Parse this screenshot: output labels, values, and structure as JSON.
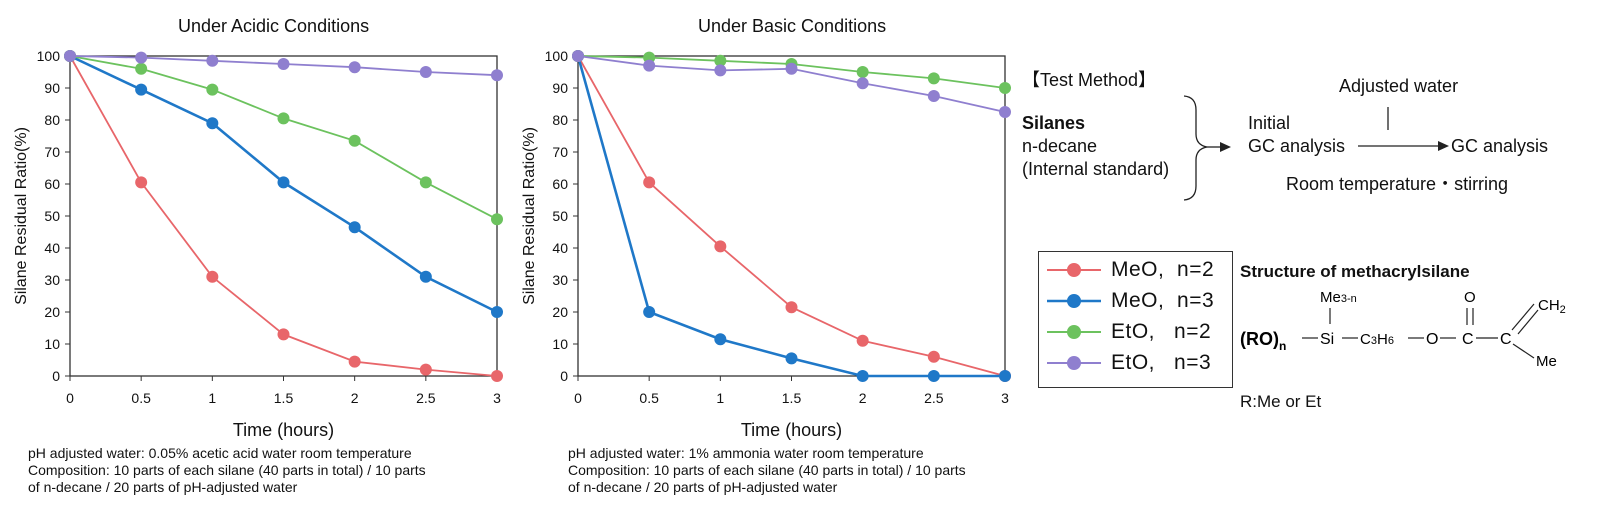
{
  "chart_data": [
    {
      "type": "line",
      "title": "Under Acidic Conditions",
      "xlabel": "Time (hours)",
      "ylabel": "Silane Residual Ratio(%)",
      "x": [
        0,
        0.5,
        1,
        1.5,
        2,
        2.5,
        3
      ],
      "x_tick_labels": [
        "0",
        "0.5",
        "1",
        "1.5",
        "2",
        "2.5",
        "3"
      ],
      "y_tick_labels": [
        "0",
        "10",
        "20",
        "30",
        "40",
        "50",
        "60",
        "70",
        "80",
        "90",
        "100"
      ],
      "xlim": [
        0,
        3
      ],
      "ylim": [
        0,
        100
      ],
      "series": [
        {
          "name": "MeO, n=2",
          "color": "#e8666a",
          "values": [
            100,
            60.5,
            31,
            13,
            4.5,
            2,
            0
          ]
        },
        {
          "name": "MeO, n=3",
          "color": "#1f78c8",
          "values": [
            100,
            89.5,
            79,
            60.5,
            46.5,
            31,
            20
          ]
        },
        {
          "name": "EtO, n=2",
          "color": "#6cc25e",
          "values": [
            100,
            96,
            89.5,
            80.5,
            73.5,
            60.5,
            49
          ]
        },
        {
          "name": "EtO, n=3",
          "color": "#8f7fcf",
          "values": [
            100,
            99.5,
            98.5,
            97.5,
            96.5,
            95,
            94
          ]
        }
      ],
      "note_lines": [
        "pH adjusted water: 0.05% acetic acid water room temperature",
        "Composition: 10 parts of each silane (40 parts in total) / 10 parts",
        "of n-decane / 20 parts of pH-adjusted water"
      ]
    },
    {
      "type": "line",
      "title": "Under Basic Conditions",
      "xlabel": "Time (hours)",
      "ylabel": "Silane Residual Ratio(%)",
      "x": [
        0,
        0.5,
        1,
        1.5,
        2,
        2.5,
        3
      ],
      "x_tick_labels": [
        "0",
        "0.5",
        "1",
        "1.5",
        "2",
        "2.5",
        "3"
      ],
      "y_tick_labels": [
        "0",
        "10",
        "20",
        "30",
        "40",
        "50",
        "60",
        "70",
        "80",
        "90",
        "100"
      ],
      "xlim": [
        0,
        3
      ],
      "ylim": [
        0,
        100
      ],
      "series": [
        {
          "name": "MeO, n=2",
          "color": "#e8666a",
          "values": [
            100,
            60.5,
            40.5,
            21.5,
            11,
            6,
            0
          ]
        },
        {
          "name": "MeO, n=3",
          "color": "#1f78c8",
          "values": [
            100,
            20,
            11.5,
            5.5,
            0,
            0,
            0
          ]
        },
        {
          "name": "EtO, n=2",
          "color": "#6cc25e",
          "values": [
            100,
            99.5,
            98.5,
            97.5,
            95,
            93,
            90
          ]
        },
        {
          "name": "EtO, n=3",
          "color": "#8f7fcf",
          "values": [
            100,
            97,
            95.5,
            96,
            91.5,
            87.5,
            82.5
          ]
        }
      ],
      "note_lines": [
        "pH adjusted water: 1% ammonia water room temperature",
        "Composition: 10 parts of each silane (40 parts in total) / 10 parts",
        "of n-decane / 20 parts of pH-adjusted water"
      ]
    }
  ],
  "legend": {
    "items": [
      {
        "prefix": "MeO,",
        "suffix": "n=2",
        "color": "#e8666a"
      },
      {
        "prefix": "MeO,",
        "suffix": "n=3",
        "color": "#1f78c8"
      },
      {
        "prefix": "EtO,",
        "suffix": "n=2",
        "color": "#6cc25e"
      },
      {
        "prefix": "EtO,",
        "suffix": "n=3",
        "color": "#8f7fcf"
      }
    ]
  },
  "test_method": {
    "heading": "【Test Method】",
    "silanes": "Silanes",
    "decane": "n-decane",
    "internal_standard": "(Internal standard)",
    "adjusted_water": "Adjusted water",
    "initial": "Initial",
    "gc_initial": "GC analysis",
    "gc_final": "GC analysis",
    "conditions": "Room temperature・stirring"
  },
  "structure": {
    "title": "Structure of methacrylsilane",
    "ro": "(RO)",
    "ro_sub": "n",
    "me_group": "Me",
    "me_sub": "3-n",
    "si": "Si",
    "c": "C",
    "c3h6_sub1": "3",
    "h": "H",
    "c3h6_sub2": "6",
    "o": "O",
    "carbonyl_o": "O",
    "ch2": "CH",
    "ch2_sub": "2",
    "me": "Me",
    "r_def": "R:Me or Et"
  }
}
